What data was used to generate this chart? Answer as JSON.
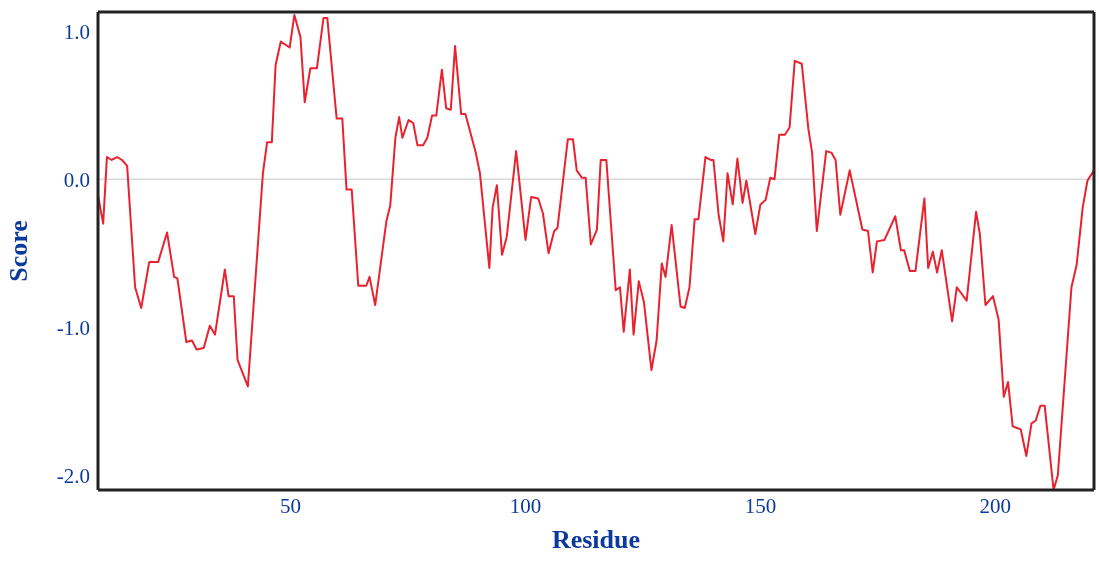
{
  "chart_data": {
    "type": "line",
    "xlabel": "Residue",
    "ylabel": "Score",
    "x": [
      9.0,
      10.1,
      10.9,
      11.9,
      13.1,
      14.1,
      15.2,
      16.9,
      18.2,
      19.9,
      21.8,
      23.7,
      25.2,
      25.9,
      27.8,
      29.0,
      30.0,
      31.5,
      32.8,
      33.9,
      36.0,
      36.8,
      37.9,
      38.7,
      40.9,
      44.1,
      45.0,
      46.0,
      46.8,
      47.9,
      49.8,
      50.8,
      52.1,
      53.0,
      54.2,
      55.6,
      57.0,
      57.8,
      59.8,
      61.0,
      61.9,
      63.0,
      64.4,
      66.1,
      66.8,
      68.0,
      70.4,
      71.2,
      72.3,
      73.1,
      73.8,
      75.1,
      76.1,
      77.0,
      78.2,
      79.1,
      80.1,
      81.0,
      82.2,
      83.1,
      84.1,
      85.0,
      86.3,
      87.2,
      89.4,
      90.3,
      92.3,
      93.0,
      93.9,
      95.0,
      96.0,
      98.0,
      100.0,
      101.2,
      102.7,
      103.7,
      104.9,
      106.1,
      106.8,
      109.0,
      110.1,
      110.9,
      112.0,
      112.8,
      113.9,
      115.2,
      116.0,
      117.2,
      119.2,
      120.1,
      120.9,
      122.2,
      123.0,
      124.1,
      125.2,
      126.8,
      127.9,
      129.0,
      129.8,
      131.1,
      133.0,
      133.9,
      134.9,
      136.0,
      136.8,
      138.3,
      139.4,
      140.0,
      141.1,
      142.1,
      143.0,
      144.1,
      145.1,
      146.2,
      147.0,
      148.9,
      150.0,
      151.1,
      152.1,
      153.0,
      154.0,
      155.2,
      156.2,
      157.3,
      158.8,
      160.2,
      161.0,
      162.0,
      164.0,
      165.1,
      166.0,
      167.0,
      169.0,
      171.7,
      172.9,
      173.9,
      174.8,
      176.4,
      178.7,
      179.9,
      180.6,
      181.8,
      183.0,
      184.9,
      185.7,
      186.7,
      187.6,
      188.6,
      190.8,
      191.8,
      193.9,
      195.9,
      196.7,
      197.9,
      199.5,
      200.7,
      201.8,
      202.7,
      203.7,
      205.4,
      206.6,
      207.7,
      208.6,
      209.6,
      210.5,
      212.4,
      213.3,
      216.2,
      217.3,
      218.6,
      219.6,
      221.0
    ],
    "series": [
      {
        "color": "#e8232f",
        "values": [
          -0.11,
          -0.3,
          0.15,
          0.13,
          0.15,
          0.13,
          0.09,
          -0.73,
          -0.87,
          -0.56,
          -0.56,
          -0.36,
          -0.66,
          -0.67,
          -1.1,
          -1.09,
          -1.15,
          -1.14,
          -0.99,
          -1.05,
          -0.61,
          -0.79,
          -0.79,
          -1.22,
          -1.4,
          0.04,
          0.25,
          0.25,
          0.77,
          0.93,
          0.89,
          1.11,
          0.96,
          0.52,
          0.75,
          0.75,
          1.09,
          1.09,
          0.41,
          0.41,
          -0.07,
          -0.07,
          -0.72,
          -0.72,
          -0.66,
          -0.85,
          -0.28,
          -0.18,
          0.28,
          0.42,
          0.28,
          0.4,
          0.38,
          0.23,
          0.23,
          0.28,
          0.43,
          0.43,
          0.74,
          0.48,
          0.47,
          0.9,
          0.44,
          0.44,
          0.18,
          0.04,
          -0.6,
          -0.19,
          -0.04,
          -0.51,
          -0.39,
          0.19,
          -0.41,
          -0.12,
          -0.13,
          -0.23,
          -0.5,
          -0.35,
          -0.33,
          0.27,
          0.27,
          0.06,
          0.01,
          0.01,
          -0.44,
          -0.34,
          0.13,
          0.13,
          -0.75,
          -0.73,
          -1.03,
          -0.61,
          -1.05,
          -0.69,
          -0.83,
          -1.29,
          -1.09,
          -0.57,
          -0.66,
          -0.31,
          -0.86,
          -0.87,
          -0.73,
          -0.27,
          -0.27,
          0.15,
          0.13,
          0.13,
          -0.24,
          -0.42,
          0.04,
          -0.17,
          0.14,
          -0.16,
          -0.01,
          -0.37,
          -0.17,
          -0.14,
          0.01,
          0.0,
          0.3,
          0.3,
          0.35,
          0.8,
          0.78,
          0.34,
          0.18,
          -0.35,
          0.19,
          0.18,
          0.13,
          -0.24,
          0.06,
          -0.34,
          -0.35,
          -0.63,
          -0.42,
          -0.41,
          -0.25,
          -0.48,
          -0.48,
          -0.62,
          -0.62,
          -0.13,
          -0.6,
          -0.49,
          -0.63,
          -0.48,
          -0.96,
          -0.73,
          -0.82,
          -0.22,
          -0.37,
          -0.85,
          -0.79,
          -0.95,
          -1.47,
          -1.37,
          -1.67,
          -1.69,
          -1.87,
          -1.65,
          -1.63,
          -1.53,
          -1.53,
          -2.1,
          -2.0,
          -0.73,
          -0.58,
          -0.19,
          -0.01,
          0.06
        ]
      }
    ],
    "xlim": [
      9,
      221
    ],
    "xticks": [
      50,
      100,
      150,
      200
    ],
    "ylim": [
      -2.1,
      1.13
    ],
    "yticks": [
      {
        "value": 1,
        "label": "1.0"
      },
      {
        "value": 0,
        "label": "0.0"
      },
      {
        "value": -1,
        "label": "-1.0"
      },
      {
        "value": -2,
        "label": "-2.0"
      }
    ],
    "ref_lines": [
      {
        "axis": "y",
        "value": 0,
        "color": "#d9d9d9"
      }
    ],
    "grid": false,
    "legend": false,
    "marker": "none",
    "line_style": "solid"
  }
}
